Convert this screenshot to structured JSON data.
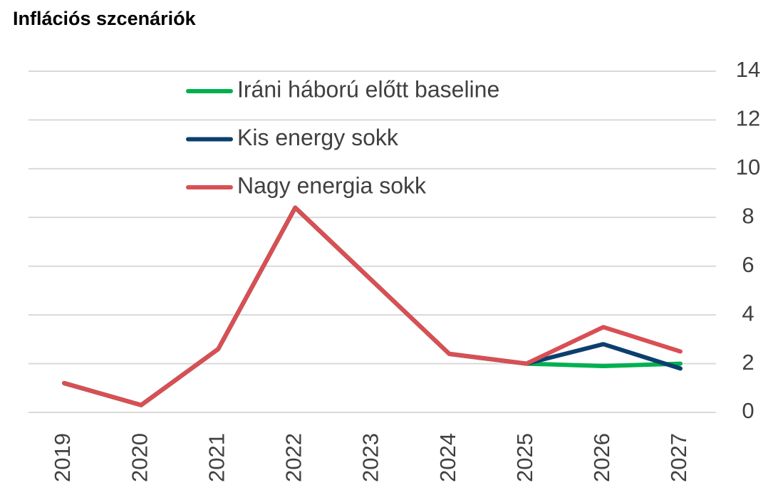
{
  "chart_data": {
    "type": "line",
    "title": "Inflációs szcenáriók",
    "categories": [
      "2019",
      "2020",
      "2021",
      "2022",
      "2023",
      "2024",
      "2025",
      "2026",
      "2027"
    ],
    "series": [
      {
        "name": "Iráni háború előtt baseline",
        "color": "#00b050",
        "values": [
          1.2,
          0.3,
          2.6,
          8.4,
          5.4,
          2.4,
          2.0,
          1.9,
          2.0
        ]
      },
      {
        "name": "Kis energy sokk",
        "color": "#0b3f6e",
        "values": [
          1.2,
          0.3,
          2.6,
          8.4,
          5.4,
          2.4,
          2.0,
          2.8,
          1.8
        ]
      },
      {
        "name": "Nagy energia sokk",
        "color": "#d94f53",
        "values": [
          1.2,
          0.3,
          2.6,
          8.4,
          5.4,
          2.4,
          2.0,
          3.5,
          2.5
        ]
      }
    ],
    "ylim": [
      0,
      14
    ],
    "yticks": [
      0,
      2,
      4,
      6,
      8,
      10,
      12,
      14
    ],
    "grid": true,
    "legend": "upper left",
    "y_axis_side": "right"
  }
}
